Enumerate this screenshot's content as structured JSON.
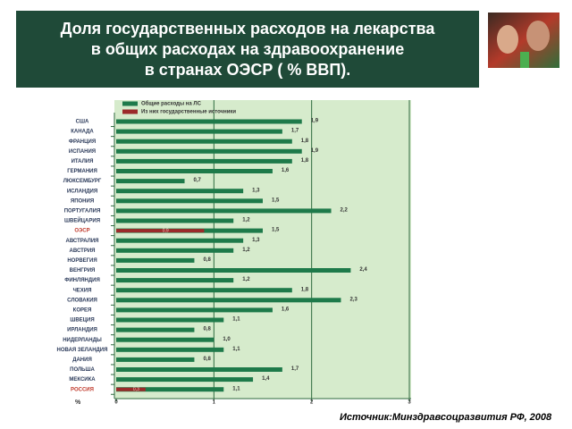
{
  "chart_data": {
    "type": "bar",
    "orientation": "horizontal",
    "title": "Доля государственных расходов  на лекарства\nв общих расходах на здравоохранение\nв странах ОЭСР  ( % ВВП).",
    "source": "Источник:Минздравсоцразвития РФ, 2008",
    "x_label": "%",
    "categories": [
      "США",
      "КАНАДА",
      "ФРАНЦИЯ",
      "ИСПАНИЯ",
      "ИТАЛИЯ",
      "ГЕРМАНИЯ",
      "ЛЮКСЕМБУРГ",
      "ИСЛАНДИЯ",
      "ЯПОНИЯ",
      "ПОРТУГАЛИЯ",
      "ШВЕЙЦАРИЯ",
      "ОЭСР",
      "АВСТРАЛИЯ",
      "АВСТРИЯ",
      "НОРВЕГИЯ",
      "ВЕНГРИЯ",
      "ФИНЛЯНДИЯ",
      "ЧЕХИЯ",
      "СЛОВАКИЯ",
      "КОРЕЯ",
      "ШВЕЦИЯ",
      "ИРЛАНДИЯ",
      "НИДЕРЛАНДЫ",
      "НОВАЯ ЗЕЛАНДИЯ",
      "ДАНИЯ",
      "ПОЛЬША",
      "МЕКСИКА",
      "РОССИЯ"
    ],
    "series": [
      {
        "name": "Общие расходы на ЛС",
        "color": "#1e7a4a",
        "values": [
          1.9,
          1.7,
          1.8,
          1.9,
          1.8,
          1.6,
          0.7,
          1.3,
          1.5,
          2.2,
          1.2,
          1.5,
          1.3,
          1.2,
          0.8,
          2.4,
          1.2,
          1.8,
          2.3,
          1.6,
          1.1,
          0.8,
          1.0,
          1.1,
          0.8,
          1.7,
          1.4,
          1.1
        ],
        "value_labels": [
          "1,9",
          "1,7",
          "1,8",
          "1,9",
          "1,8",
          "1,6",
          "0,7",
          "1,3",
          "1,5",
          "2,2",
          "1,2",
          "1,5",
          "1,3",
          "1,2",
          "0,8",
          "2,4",
          "1,2",
          "1,8",
          "2,3",
          "1,6",
          "1,1",
          "0,8",
          "1,0",
          "1,1",
          "0,8",
          "1,7",
          "1,4",
          "1,1"
        ]
      },
      {
        "name": "Из них государственные источники",
        "color": "#9b2a2a",
        "values": [
          null,
          null,
          null,
          null,
          null,
          null,
          null,
          null,
          null,
          null,
          null,
          0.9,
          null,
          null,
          null,
          null,
          null,
          null,
          null,
          null,
          null,
          null,
          null,
          null,
          null,
          null,
          null,
          0.3
        ],
        "value_labels": [
          null,
          null,
          null,
          null,
          null,
          null,
          null,
          null,
          null,
          null,
          null,
          "0,9",
          null,
          null,
          null,
          null,
          null,
          null,
          null,
          null,
          null,
          null,
          null,
          null,
          null,
          null,
          null,
          "0,3"
        ]
      }
    ],
    "xlim": [
      0,
      3
    ],
    "xticks": [
      0,
      1,
      2,
      3
    ],
    "grid": true
  }
}
